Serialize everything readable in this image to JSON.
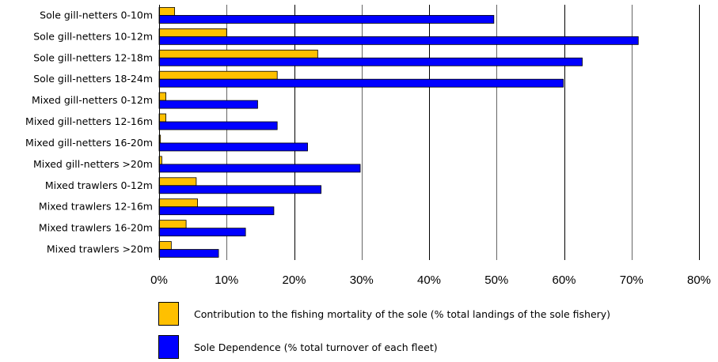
{
  "chart_data": {
    "type": "bar",
    "orientation": "horizontal",
    "categories": [
      "Sole gill-netters 0-10m",
      "Sole gill-netters 10-12m",
      "Sole gill-netters 12-18m",
      "Sole gill-netters 18-24m",
      "Mixed gill-netters 0-12m",
      "Mixed gill-netters 12-16m",
      "Mixed gill-netters 16-20m",
      "Mixed gill-netters >20m",
      "Mixed trawlers 0-12m",
      "Mixed trawlers 12-16m",
      "Mixed trawlers 16-20m",
      "Mixed trawlers >20m"
    ],
    "series": [
      {
        "name": "Contribution to the fishing mortality of the sole (% total landings of the sole fishery)",
        "color": "#FFC000",
        "values": [
          2.3,
          10.0,
          23.5,
          17.5,
          1.0,
          1.0,
          0.2,
          0.4,
          5.5,
          5.7,
          4.0,
          1.8
        ]
      },
      {
        "name": "Sole Dependence (% total turnover of each fleet)",
        "color": "#0000FF",
        "values": [
          49.6,
          71.0,
          62.7,
          59.9,
          14.6,
          17.5,
          22.0,
          29.8,
          24.0,
          17.0,
          12.8,
          8.8
        ]
      }
    ],
    "xlim": [
      0,
      80
    ],
    "xticks": [
      "0%",
      "10%",
      "20%",
      "30%",
      "40%",
      "50%",
      "60%",
      "70%",
      "80%"
    ],
    "grid": true,
    "legend_position": "bottom"
  }
}
